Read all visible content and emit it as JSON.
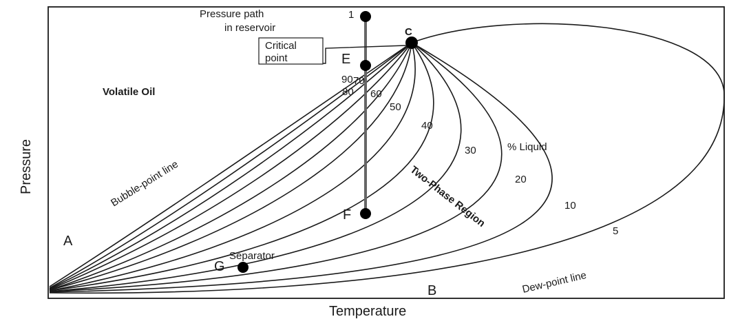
{
  "axes": {
    "x_label": "Temperature",
    "y_label": "Pressure"
  },
  "region_labels": {
    "volatile_oil": "Volatile Oil",
    "two_phase": "Two-Phase Region",
    "percent_liquid": "% Liquid",
    "bubble_point_line": "Bubble-point line",
    "dew_point_line": "Dew-point line",
    "separator": "Separator",
    "pressure_path_line1": "Pressure path",
    "pressure_path_line2": "in reservoir",
    "critical_point_line1": "Critical",
    "critical_point_line2": "point"
  },
  "points": {
    "p1": "1",
    "c": "C",
    "e": "E",
    "f": "F",
    "g": "G",
    "a": "A",
    "b": "B"
  },
  "quality_lines": [
    "90",
    "80",
    "70",
    "60",
    "50",
    "40",
    "30",
    "20",
    "10",
    "5"
  ]
}
